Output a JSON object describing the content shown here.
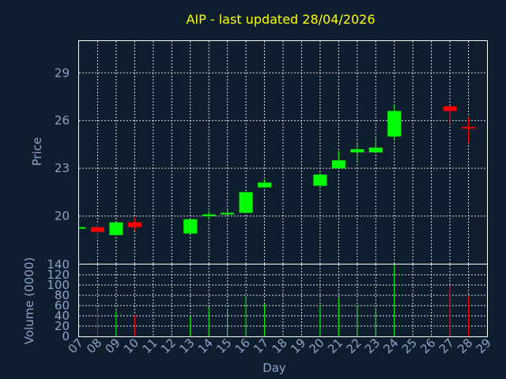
{
  "chart_data": [
    {
      "type": "candlestick",
      "title": "AIP - last updated 28/04/2026",
      "ylabel": "Price",
      "ylim": [
        17.0,
        31.0
      ],
      "yticks": [
        20,
        23,
        26,
        29
      ],
      "grid": true,
      "up_color": "#00ff00",
      "down_color": "#ff0000",
      "candles": [
        {
          "day": "07",
          "open": 19.3,
          "high": 19.3,
          "low": 19.3,
          "close": 19.3,
          "dir": "up"
        },
        {
          "day": "08",
          "open": 19.3,
          "high": 19.5,
          "low": 18.6,
          "close": 19.0,
          "dir": "down"
        },
        {
          "day": "09",
          "open": 18.8,
          "high": 19.6,
          "low": 18.8,
          "close": 19.6,
          "dir": "up"
        },
        {
          "day": "10",
          "open": 19.6,
          "high": 19.9,
          "low": 19.1,
          "close": 19.3,
          "dir": "down"
        },
        {
          "day": "13",
          "open": 18.9,
          "high": 19.8,
          "low": 18.9,
          "close": 19.8,
          "dir": "up"
        },
        {
          "day": "14",
          "open": 20.0,
          "high": 20.3,
          "low": 19.8,
          "close": 20.1,
          "dir": "up"
        },
        {
          "day": "15",
          "open": 20.1,
          "high": 20.4,
          "low": 20.1,
          "close": 20.2,
          "dir": "up"
        },
        {
          "day": "16",
          "open": 20.2,
          "high": 21.5,
          "low": 20.2,
          "close": 21.5,
          "dir": "up"
        },
        {
          "day": "17",
          "open": 21.8,
          "high": 22.3,
          "low": 21.8,
          "close": 22.1,
          "dir": "up"
        },
        {
          "day": "20",
          "open": 21.9,
          "high": 22.7,
          "low": 21.9,
          "close": 22.6,
          "dir": "up"
        },
        {
          "day": "21",
          "open": 23.0,
          "high": 24.1,
          "low": 23.0,
          "close": 23.5,
          "dir": "up"
        },
        {
          "day": "22",
          "open": 24.0,
          "high": 24.6,
          "low": 23.4,
          "close": 24.2,
          "dir": "up"
        },
        {
          "day": "23",
          "open": 24.0,
          "high": 24.9,
          "low": 24.0,
          "close": 24.3,
          "dir": "up"
        },
        {
          "day": "24",
          "open": 25.0,
          "high": 27.0,
          "low": 24.8,
          "close": 26.6,
          "dir": "up"
        },
        {
          "day": "27",
          "open": 26.9,
          "high": 26.9,
          "low": 25.8,
          "close": 26.6,
          "dir": "down"
        },
        {
          "day": "28",
          "open": 25.6,
          "high": 26.2,
          "low": 24.6,
          "close": 25.6,
          "dir": "down"
        }
      ]
    },
    {
      "type": "bar",
      "ylabel": "Volume (0000)",
      "xlabel": "Day",
      "ylim": [
        0,
        140
      ],
      "yticks": [
        0,
        20,
        40,
        60,
        80,
        100,
        120,
        140
      ],
      "categories": [
        "07",
        "08",
        "09",
        "10",
        "11",
        "12",
        "13",
        "14",
        "15",
        "16",
        "17",
        "18",
        "19",
        "20",
        "21",
        "22",
        "23",
        "24",
        "25",
        "26",
        "27",
        "28",
        "29"
      ],
      "volumes": [
        {
          "day": "07",
          "value": 0,
          "dir": "up"
        },
        {
          "day": "08",
          "value": 52,
          "dir": "down"
        },
        {
          "day": "09",
          "value": 50,
          "dir": "up"
        },
        {
          "day": "10",
          "value": 42,
          "dir": "down"
        },
        {
          "day": "13",
          "value": 40,
          "dir": "up"
        },
        {
          "day": "14",
          "value": 57,
          "dir": "up"
        },
        {
          "day": "15",
          "value": 52,
          "dir": "up"
        },
        {
          "day": "16",
          "value": 79,
          "dir": "up"
        },
        {
          "day": "17",
          "value": 63,
          "dir": "up"
        },
        {
          "day": "20",
          "value": 60,
          "dir": "up"
        },
        {
          "day": "21",
          "value": 75,
          "dir": "up"
        },
        {
          "day": "22",
          "value": 60,
          "dir": "up"
        },
        {
          "day": "23",
          "value": 55,
          "dir": "up"
        },
        {
          "day": "24",
          "value": 140,
          "dir": "up"
        },
        {
          "day": "27",
          "value": 98,
          "dir": "down"
        },
        {
          "day": "28",
          "value": 78,
          "dir": "down"
        }
      ]
    }
  ]
}
